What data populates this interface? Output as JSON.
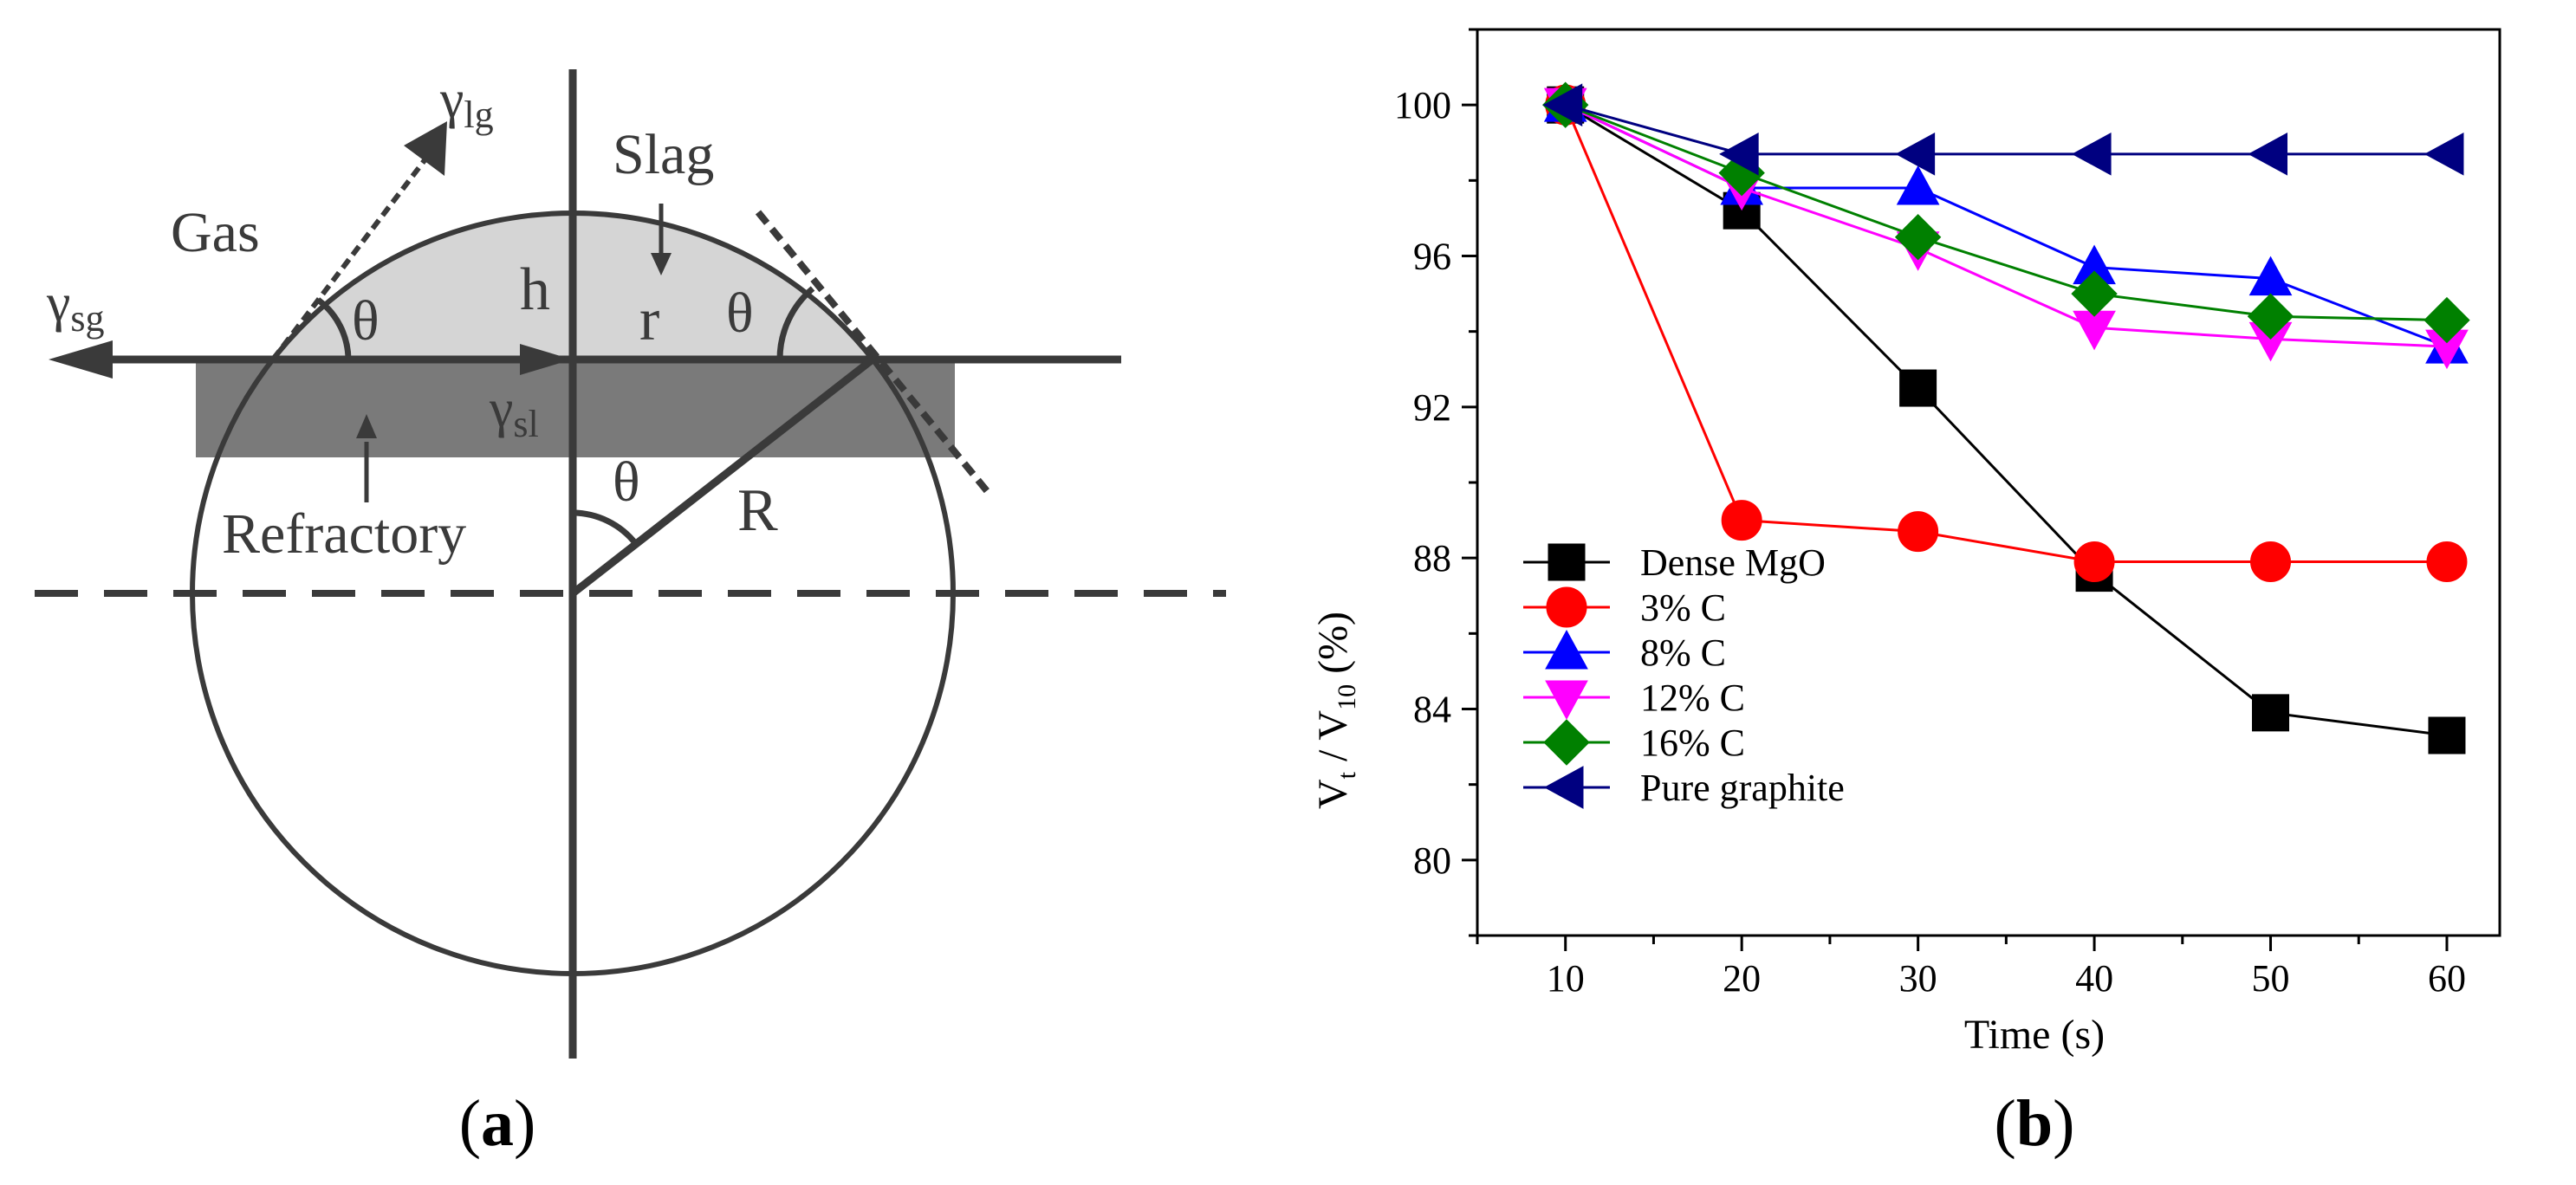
{
  "panel_a": {
    "label": "(a)",
    "label_bold": "a",
    "labels": {
      "gamma": "γ",
      "gamma_lg_sub": "lg",
      "gamma_sg_sub": "sg",
      "gamma_sl_sub": "sl",
      "gas": "Gas",
      "slag": "Slag",
      "h": "h",
      "r": "r",
      "theta": "θ",
      "R": "R",
      "refractory": "Refractory"
    },
    "colors": {
      "line": "#3a3a3a",
      "slag_fill": "#d5d5d5",
      "refractory_fill": "#7a7a7a"
    }
  },
  "panel_b": {
    "label": "(b)",
    "label_bold": "b"
  },
  "chart_data": {
    "type": "line",
    "title": "",
    "xlabel": "Time (s)",
    "ylabel": {
      "v": "V",
      "t": "t",
      "slash": " / V",
      "sub10": "10",
      "pct": " (%)"
    },
    "xlim": [
      5,
      63
    ],
    "ylim": [
      78,
      102
    ],
    "xticks": [
      10,
      20,
      30,
      40,
      50,
      60
    ],
    "yticks": [
      80,
      84,
      88,
      92,
      96,
      100
    ],
    "x": [
      10,
      20,
      30,
      40,
      50,
      60
    ],
    "legend_position": "bottom-left",
    "series": [
      {
        "name": "Dense MgO",
        "color": "#000000",
        "marker": "square",
        "values": [
          100,
          97.2,
          92.5,
          87.6,
          83.9,
          83.3
        ]
      },
      {
        "name": "3% C",
        "color": "#ff0000",
        "marker": "circle",
        "values": [
          100,
          89.0,
          88.7,
          87.9,
          87.9,
          87.9
        ]
      },
      {
        "name": "8% C",
        "color": "#0000ff",
        "marker": "triangle-up",
        "values": [
          100,
          97.8,
          97.8,
          95.7,
          95.4,
          93.6
        ]
      },
      {
        "name": "12% C",
        "color": "#ff00ff",
        "marker": "triangle-down",
        "values": [
          100,
          97.8,
          96.2,
          94.1,
          93.8,
          93.6
        ]
      },
      {
        "name": "16% C",
        "color": "#008000",
        "marker": "diamond",
        "values": [
          100,
          98.2,
          96.5,
          95.0,
          94.4,
          94.3
        ]
      },
      {
        "name": "Pure graphite",
        "color": "#000080",
        "marker": "triangle-left",
        "values": [
          100,
          98.7,
          98.7,
          98.7,
          98.7,
          98.7
        ]
      }
    ]
  }
}
